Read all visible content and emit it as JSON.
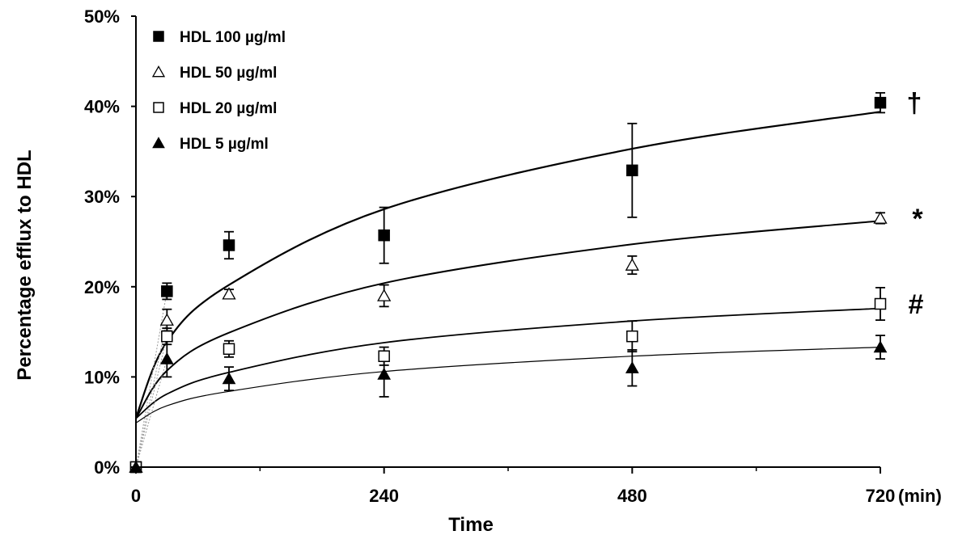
{
  "chart_data": {
    "type": "scatter",
    "xlabel": "Time",
    "xunit": "(min)",
    "ylabel": "Percentage efflux to  HDL",
    "xlim": [
      0,
      720
    ],
    "ylim": [
      0,
      50
    ],
    "x_ticks": [
      "0",
      "240",
      "480",
      "720"
    ],
    "y_ticks": [
      "0%",
      "10%",
      "20%",
      "30%",
      "40%",
      "50%"
    ],
    "x_minor_ticks": [
      120,
      360,
      600
    ],
    "grid": false,
    "legend_position": "top-left",
    "series": [
      {
        "name": "HDL 100 µg/ml",
        "marker": "filled-square",
        "color": "#000000",
        "x": [
          0,
          30,
          90,
          240,
          480,
          720
        ],
        "y": [
          0,
          19.5,
          24.6,
          25.7,
          32.9,
          40.4
        ],
        "err": [
          0,
          0.9,
          1.5,
          3.1,
          5.2,
          1.1
        ],
        "fit_curve": [
          [
            0,
            5.5
          ],
          [
            30,
            13.9
          ],
          [
            90,
            20.2
          ],
          [
            240,
            28.6
          ],
          [
            480,
            35.3
          ],
          [
            720,
            39.4
          ]
        ],
        "annotation": "†"
      },
      {
        "name": "HDL 50 µg/ml",
        "marker": "open-triangle",
        "color": "#000000",
        "x": [
          0,
          30,
          90,
          240,
          480,
          720
        ],
        "y": [
          0,
          16.3,
          19.2,
          19.0,
          22.4,
          27.6
        ],
        "err": [
          0,
          1.2,
          0.5,
          1.2,
          1.0,
          0.6
        ],
        "fit_curve": [
          [
            0,
            5.4
          ],
          [
            30,
            10.7
          ],
          [
            90,
            14.9
          ],
          [
            240,
            20.4
          ],
          [
            480,
            24.7
          ],
          [
            720,
            27.3
          ]
        ],
        "annotation": "*"
      },
      {
        "name": "HDL 20 µg/ml",
        "marker": "open-square",
        "color": "#000000",
        "x": [
          0,
          30,
          90,
          240,
          480,
          720
        ],
        "y": [
          0,
          14.5,
          13.1,
          12.3,
          14.5,
          18.1
        ],
        "err": [
          0,
          0.9,
          0.9,
          1.0,
          1.7,
          1.8
        ],
        "fit_curve": [
          [
            0,
            5.4
          ],
          [
            30,
            8.1
          ],
          [
            90,
            10.5
          ],
          [
            240,
            13.8
          ],
          [
            480,
            16.2
          ],
          [
            720,
            17.6
          ]
        ],
        "annotation": "#"
      },
      {
        "name": "HDL 5 µg/ml",
        "marker": "filled-triangle",
        "color": "#000000",
        "x": [
          0,
          30,
          90,
          240,
          480,
          720
        ],
        "y": [
          0,
          12.0,
          9.8,
          10.3,
          11.0,
          13.3
        ],
        "err": [
          0,
          2.0,
          1.3,
          2.5,
          2.0,
          1.3
        ],
        "fit_curve": [
          [
            0,
            4.9
          ],
          [
            30,
            6.8
          ],
          [
            90,
            8.4
          ],
          [
            240,
            10.6
          ],
          [
            480,
            12.3
          ],
          [
            720,
            13.3
          ]
        ],
        "annotation": ""
      }
    ]
  }
}
